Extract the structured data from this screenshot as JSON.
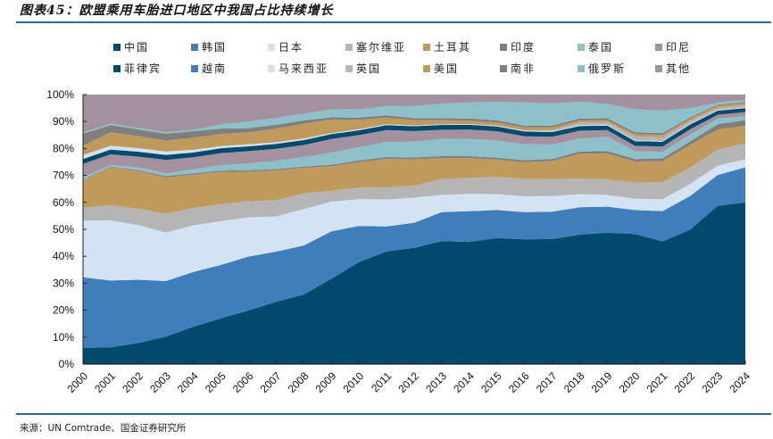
{
  "title": "图表45：欧盟乘用车胎进口地区中我国占比持续增长",
  "source": "来源：UN Comtrade、国金证券研究所",
  "chart_data": {
    "type": "area",
    "stacked": true,
    "title": "图表45：欧盟乘用车胎进口地区中我国占比持续增长",
    "xlabel": "",
    "ylabel": "",
    "ylim": [
      0,
      100
    ],
    "y_ticks": [
      "0%",
      "10%",
      "20%",
      "30%",
      "40%",
      "50%",
      "60%",
      "70%",
      "80%",
      "90%",
      "100%"
    ],
    "legend_position": "top",
    "grid": false,
    "categories": [
      "2000",
      "2001",
      "2002",
      "2003",
      "2004",
      "2005",
      "2006",
      "2007",
      "2008",
      "2009",
      "2010",
      "2011",
      "2012",
      "2013",
      "2014",
      "2015",
      "2016",
      "2017",
      "2018",
      "2019",
      "2020",
      "2021",
      "2022",
      "2023",
      "2024"
    ],
    "series": [
      {
        "name": "中国",
        "color": "#004a6e",
        "values": [
          6.0,
          6.2,
          7.8,
          10.2,
          14.0,
          17.0,
          19.8,
          23.0,
          25.8,
          31.5,
          38.0,
          41.7,
          44.0,
          46.5,
          46.0,
          47.5,
          47.0,
          48.0,
          49.5,
          50.5,
          49.0,
          46.5,
          50.0,
          59.0,
          60.0
        ]
      },
      {
        "name": "韩国",
        "color": "#3f7dbb",
        "values": [
          26.2,
          24.8,
          23.5,
          20.6,
          20.5,
          19.8,
          19.9,
          18.5,
          18.2,
          17.5,
          13.5,
          9.2,
          9.5,
          11.0,
          11.6,
          10.5,
          10.2,
          10.5,
          10.5,
          10.0,
          9.0,
          11.5,
          12.5,
          11.5,
          13.0
        ]
      },
      {
        "name": "日本",
        "color": "#d3e3f3",
        "values": [
          21.0,
          22.3,
          20.3,
          18.0,
          17.5,
          16.2,
          14.5,
          13.0,
          13.5,
          11.0,
          10.0,
          10.0,
          9.5,
          6.5,
          6.5,
          6.0,
          6.0,
          6.0,
          5.0,
          4.5,
          4.3,
          4.5,
          4.5,
          3.5,
          3.0
        ]
      },
      {
        "name": "塞尔维亚",
        "color": "#b5b5b5",
        "values": [
          4.8,
          5.7,
          6.0,
          7.0,
          6.5,
          6.3,
          5.9,
          6.0,
          5.8,
          4.0,
          4.3,
          4.5,
          4.5,
          6.0,
          6.0,
          6.5,
          6.5,
          6.5,
          6.0,
          6.0,
          6.0,
          6.5,
          6.0,
          6.0,
          6.0
        ]
      },
      {
        "name": "土耳其",
        "color": "#c09a5b",
        "values": [
          10.0,
          14.0,
          14.0,
          13.5,
          12.5,
          12.0,
          11.0,
          11.0,
          9.5,
          9.0,
          9.5,
          10.5,
          10.0,
          8.0,
          7.5,
          6.5,
          6.3,
          7.0,
          9.5,
          10.0,
          8.0,
          8.0,
          8.5,
          7.5,
          6.5
        ]
      },
      {
        "name": "印度",
        "color": "#7f7f7f",
        "values": [
          0.3,
          0.3,
          0.4,
          0.5,
          0.5,
          0.5,
          0.5,
          0.5,
          0.5,
          0.6,
          0.6,
          0.7,
          0.7,
          0.7,
          0.7,
          0.7,
          0.8,
          0.8,
          0.8,
          0.9,
          0.9,
          1.0,
          1.3,
          2.0,
          2.0
        ]
      },
      {
        "name": "泰国",
        "color": "#8dc0c8",
        "values": [
          1.0,
          0.5,
          1.0,
          1.0,
          1.5,
          2.0,
          2.5,
          3.0,
          3.5,
          4.5,
          5.0,
          5.5,
          6.0,
          6.5,
          6.5,
          6.5,
          6.0,
          5.5,
          5.0,
          5.5,
          3.0,
          2.5,
          2.5,
          2.0,
          1.5
        ]
      },
      {
        "name": "印尼",
        "color": "#a3919f",
        "values": [
          5.0,
          4.0,
          4.0,
          5.0,
          4.5,
          4.5,
          4.5,
          4.5,
          4.5,
          5.0,
          4.5,
          4.5,
          4.0,
          3.5,
          3.5,
          3.5,
          3.0,
          3.0,
          3.0,
          2.5,
          2.0,
          2.0,
          2.0,
          1.5,
          1.5
        ]
      },
      {
        "name": "菲律宾",
        "color": "#004a6e",
        "values": [
          1.8,
          1.8,
          1.8,
          1.8,
          1.8,
          1.8,
          1.8,
          1.8,
          1.8,
          1.8,
          1.8,
          1.8,
          1.8,
          1.8,
          1.8,
          1.8,
          1.8,
          1.8,
          1.8,
          1.8,
          1.8,
          1.8,
          1.8,
          1.5,
          1.5
        ]
      },
      {
        "name": "越南",
        "color": "#3f7dbb",
        "values": [
          0.0,
          0.0,
          0.0,
          0.0,
          0.0,
          0.0,
          0.0,
          0.0,
          0.0,
          0.0,
          0.0,
          0.0,
          0.0,
          0.0,
          0.0,
          0.0,
          0.0,
          0.0,
          0.0,
          0.0,
          0.0,
          0.0,
          0.0,
          0.0,
          0.0
        ]
      },
      {
        "name": "马来西亚",
        "color": "#d3e3f3",
        "values": [
          1.4,
          1.4,
          1.3,
          1.3,
          1.0,
          0.8,
          0.7,
          0.6,
          0.6,
          0.4,
          0.4,
          0.3,
          0.3,
          0.3,
          0.3,
          0.3,
          0.3,
          0.3,
          0.3,
          0.3,
          0.3,
          0.3,
          0.3,
          0.3,
          0.3
        ]
      },
      {
        "name": "英国",
        "color": "#b5b5b5",
        "values": [
          0.0,
          0.0,
          0.0,
          0.0,
          0.0,
          0.0,
          0.0,
          0.0,
          0.0,
          0.0,
          0.0,
          0.0,
          0.0,
          0.0,
          0.0,
          0.0,
          0.2,
          0.5,
          1.0,
          1.0,
          1.5,
          1.5,
          1.0,
          0.8,
          0.8
        ]
      },
      {
        "name": "美国",
        "color": "#c09a5b",
        "values": [
          3.5,
          5.0,
          4.5,
          4.0,
          4.5,
          4.5,
          4.5,
          5.0,
          5.5,
          5.0,
          3.5,
          2.5,
          2.0,
          1.5,
          1.3,
          1.2,
          1.0,
          1.0,
          0.8,
          0.8,
          0.8,
          0.8,
          0.8,
          0.8,
          0.8
        ]
      },
      {
        "name": "南非",
        "color": "#7f7f7f",
        "values": [
          4.5,
          2.7,
          2.5,
          2.6,
          2.5,
          2.0,
          1.5,
          1.5,
          1.2,
          0.8,
          0.8,
          0.8,
          0.8,
          0.8,
          0.8,
          0.8,
          0.7,
          0.7,
          0.7,
          0.7,
          0.7,
          0.7,
          0.5,
          0.4,
          0.4
        ]
      },
      {
        "name": "俄罗斯",
        "color": "#8dc0c8",
        "values": [
          0.5,
          0.5,
          0.5,
          0.5,
          0.5,
          1.5,
          2.5,
          2.5,
          2.5,
          3.0,
          3.0,
          3.5,
          4.5,
          5.5,
          6.0,
          7.0,
          8.7,
          8.5,
          6.5,
          5.5,
          8.7,
          8.5,
          3.5,
          0.7,
          0.7
        ]
      },
      {
        "name": "其他",
        "color": "#a3919f",
        "values": [
          14.0,
          10.8,
          12.4,
          14.0,
          13.2,
          11.1,
          9.9,
          8.6,
          7.1,
          5.4,
          5.6,
          4.2,
          4.4,
          3.4,
          3.0,
          2.7,
          3.0,
          3.4,
          2.7,
          3.6,
          5.5,
          6.1,
          5.0,
          3.0,
          2.0
        ]
      }
    ]
  },
  "legend": {
    "row1": [
      "中国",
      "韩国",
      "日本",
      "塞尔维亚",
      "土耳其",
      "印度",
      "泰国",
      "印尼"
    ],
    "row2": [
      "菲律宾",
      "越南",
      "马来西亚",
      "英国",
      "美国",
      "南非",
      "俄罗斯",
      "其他"
    ]
  }
}
